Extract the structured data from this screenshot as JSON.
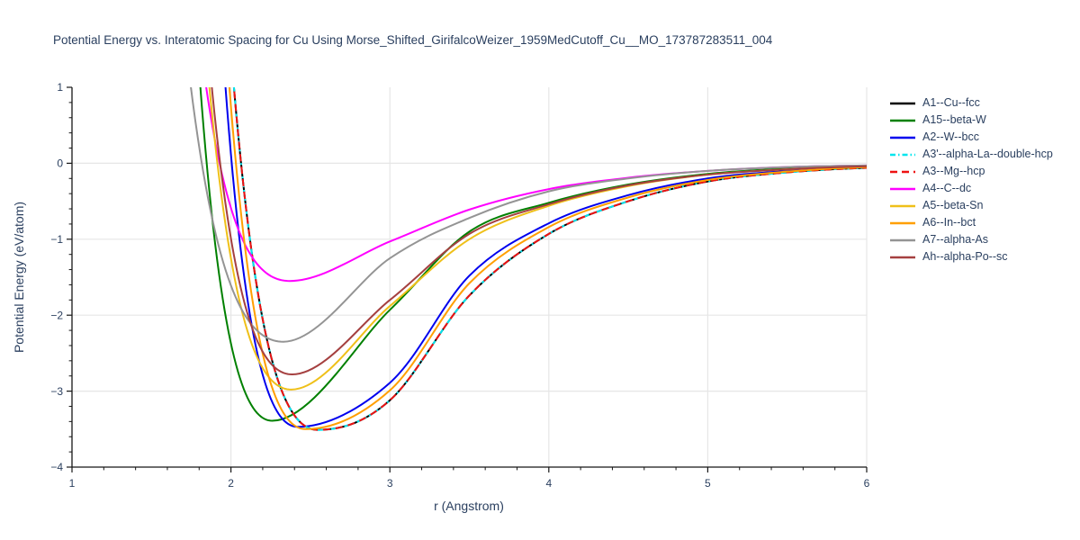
{
  "chart_data": {
    "type": "line",
    "title": "Potential Energy vs. Interatomic Spacing for Cu Using Morse_Shifted_GirifalcoWeizer_1959MedCutoff_Cu__MO_173787283511_004",
    "xlabel": "r (Angstrom)",
    "ylabel": "Potential Energy (eV/atom)",
    "xlim": [
      1,
      6
    ],
    "ylim": [
      -4,
      1
    ],
    "x_ticks": [
      1,
      2,
      3,
      4,
      5,
      6
    ],
    "y_ticks": [
      -4,
      -3,
      -2,
      -1,
      0,
      1
    ],
    "x_minor_tick_step": 0.2,
    "y_minor_tick_step": 0.2,
    "grid": true,
    "legend_position": "right-outside",
    "colors": {
      "text": "#2a3f5f",
      "axis": "#161616",
      "grid": "#e6e6e6",
      "background": "#ffffff"
    },
    "series": [
      {
        "name": "A1--Cu--fcc",
        "color": "#000000",
        "dash": "solid",
        "min": {
          "r": 2.545,
          "E": -3.51
        },
        "wall": {
          "D": 3.51,
          "a": 1.44,
          "r0": 2.545
        },
        "tail_points": [
          [
            2.545,
            -3.51
          ],
          [
            3.0,
            -3.12
          ],
          [
            3.5,
            -1.74
          ],
          [
            4.0,
            -0.93
          ],
          [
            4.5,
            -0.5
          ],
          [
            5.0,
            -0.24
          ],
          [
            5.5,
            -0.12
          ],
          [
            6.0,
            -0.06
          ]
        ]
      },
      {
        "name": "A15--beta-W",
        "color": "#008000",
        "dash": "solid",
        "min": {
          "r": 2.26,
          "E": -3.39
        },
        "wall": {
          "D": 3.39,
          "a": 1.68,
          "r0": 2.26
        },
        "tail_points": [
          [
            2.26,
            -3.39
          ],
          [
            3.0,
            -1.93
          ],
          [
            3.5,
            -0.9
          ],
          [
            4.0,
            -0.52
          ],
          [
            4.5,
            -0.28
          ],
          [
            5.0,
            -0.14
          ],
          [
            5.5,
            -0.07
          ],
          [
            6.0,
            -0.04
          ]
        ]
      },
      {
        "name": "A2--W--bcc",
        "color": "#0000ee",
        "dash": "solid",
        "min": {
          "r": 2.42,
          "E": -3.47
        },
        "wall": {
          "D": 3.47,
          "a": 1.67,
          "r0": 2.42
        },
        "tail_points": [
          [
            2.42,
            -3.47
          ],
          [
            3.0,
            -2.89
          ],
          [
            3.5,
            -1.48
          ],
          [
            4.0,
            -0.79
          ],
          [
            4.5,
            -0.42
          ],
          [
            5.0,
            -0.2
          ],
          [
            5.5,
            -0.1
          ],
          [
            6.0,
            -0.05
          ]
        ]
      },
      {
        "name": "A3'--alpha-La--double-hcp",
        "color": "#00e5ee",
        "dash": "dashdot",
        "min": {
          "r": 2.545,
          "E": -3.51
        },
        "wall": {
          "D": 3.51,
          "a": 1.44,
          "r0": 2.545
        },
        "tail_points": [
          [
            2.545,
            -3.51
          ],
          [
            3.0,
            -3.12
          ],
          [
            3.5,
            -1.74
          ],
          [
            4.0,
            -0.93
          ],
          [
            4.5,
            -0.5
          ],
          [
            5.0,
            -0.24
          ],
          [
            5.5,
            -0.12
          ],
          [
            6.0,
            -0.06
          ]
        ]
      },
      {
        "name": "A3--Mg--hcp",
        "color": "#ee1111",
        "dash": "dash",
        "min": {
          "r": 2.545,
          "E": -3.51
        },
        "wall": {
          "D": 3.51,
          "a": 1.44,
          "r0": 2.545
        },
        "tail_points": [
          [
            2.545,
            -3.51
          ],
          [
            3.0,
            -3.12
          ],
          [
            3.5,
            -1.74
          ],
          [
            4.0,
            -0.93
          ],
          [
            4.5,
            -0.5
          ],
          [
            5.0,
            -0.24
          ],
          [
            5.5,
            -0.12
          ],
          [
            6.0,
            -0.06
          ]
        ]
      },
      {
        "name": "A4--C--dc",
        "color": "#ff00ff",
        "dash": "solid",
        "min": {
          "r": 2.37,
          "E": -1.55
        },
        "wall": {
          "D": 1.55,
          "a": 1.57,
          "r0": 2.37
        },
        "tail_points": [
          [
            2.37,
            -1.55
          ],
          [
            3.0,
            -1.03
          ],
          [
            3.5,
            -0.61
          ],
          [
            4.0,
            -0.34
          ],
          [
            4.5,
            -0.19
          ],
          [
            5.0,
            -0.1
          ],
          [
            5.5,
            -0.05
          ],
          [
            6.0,
            -0.03
          ]
        ]
      },
      {
        "name": "A5--beta-Sn",
        "color": "#efc019",
        "dash": "solid",
        "min": {
          "r": 2.38,
          "E": -2.98
        },
        "wall": {
          "D": 2.98,
          "a": 1.49,
          "r0": 2.38
        },
        "tail_points": [
          [
            2.38,
            -2.98
          ],
          [
            3.0,
            -1.88
          ],
          [
            3.5,
            -1.0
          ],
          [
            4.0,
            -0.56
          ],
          [
            4.5,
            -0.3
          ],
          [
            5.0,
            -0.15
          ],
          [
            5.5,
            -0.08
          ],
          [
            6.0,
            -0.04
          ]
        ]
      },
      {
        "name": "A6--In--bct",
        "color": "#ff9f00",
        "dash": "solid",
        "min": {
          "r": 2.47,
          "E": -3.5
        },
        "wall": {
          "D": 3.5,
          "a": 1.58,
          "r0": 2.47
        },
        "tail_points": [
          [
            2.47,
            -3.5
          ],
          [
            3.0,
            -2.99
          ],
          [
            3.5,
            -1.58
          ],
          [
            4.0,
            -0.84
          ],
          [
            4.5,
            -0.45
          ],
          [
            5.0,
            -0.22
          ],
          [
            5.5,
            -0.11
          ],
          [
            6.0,
            -0.05
          ]
        ]
      },
      {
        "name": "A7--alpha-As",
        "color": "#949494",
        "dash": "solid",
        "min": {
          "r": 2.33,
          "E": -2.35
        },
        "wall": {
          "D": 2.35,
          "a": 1.35,
          "r0": 2.33
        },
        "tail_points": [
          [
            2.33,
            -2.35
          ],
          [
            3.0,
            -1.25
          ],
          [
            3.5,
            -0.72
          ],
          [
            4.0,
            -0.37
          ],
          [
            4.5,
            -0.2
          ],
          [
            5.0,
            -0.1
          ],
          [
            5.5,
            -0.05
          ],
          [
            6.0,
            -0.03
          ]
        ]
      },
      {
        "name": "Ah--alpha-Po--sc",
        "color": "#a54040",
        "dash": "solid",
        "min": {
          "r": 2.385,
          "E": -2.78
        },
        "wall": {
          "D": 2.78,
          "a": 1.53,
          "r0": 2.385
        },
        "tail_points": [
          [
            2.385,
            -2.78
          ],
          [
            3.0,
            -1.8
          ],
          [
            3.5,
            -0.93
          ],
          [
            4.0,
            -0.54
          ],
          [
            4.5,
            -0.29
          ],
          [
            5.0,
            -0.15
          ],
          [
            5.5,
            -0.08
          ],
          [
            6.0,
            -0.04
          ]
        ]
      }
    ]
  }
}
